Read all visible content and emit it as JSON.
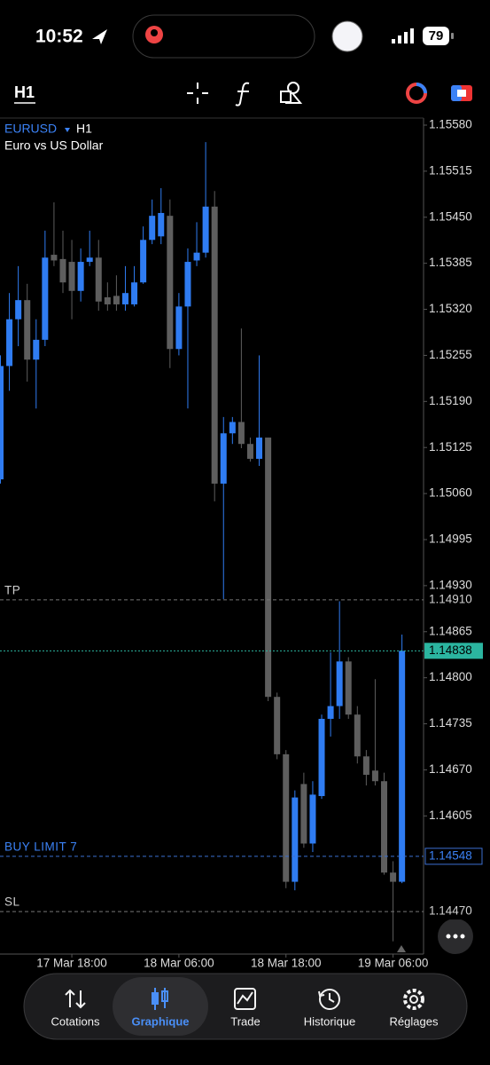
{
  "status_bar": {
    "time": "10:52",
    "battery": "79"
  },
  "toolbar": {
    "timeframe": "H1"
  },
  "chart_data": {
    "type": "candlestick",
    "symbol": "EURUSD",
    "timeframe": "H1",
    "subtitle": "Euro vs US Dollar",
    "categories": [
      null,
      null,
      null,
      null,
      null,
      null,
      null,
      null,
      "17 Mar 18:00",
      null,
      null,
      null,
      null,
      null,
      null,
      null,
      null,
      null,
      null,
      null,
      "18 Mar 06:00",
      null,
      null,
      null,
      null,
      null,
      null,
      null,
      null,
      null,
      null,
      null,
      "18 Mar 18:00",
      null,
      null,
      null,
      null,
      null,
      null,
      null,
      null,
      null,
      null,
      null,
      "19 Mar 06:00",
      null
    ],
    "series": [
      {
        "up_color": "#2f7cf2",
        "down_color": "#5e5e5e",
        "open": [
          1.1508,
          1.1524,
          1.15306,
          1.15333,
          1.15249,
          1.15277,
          1.15397,
          1.15391,
          1.15387,
          1.15346,
          1.15387,
          1.15393,
          1.15337,
          1.15339,
          1.15327,
          1.15327,
          1.15358,
          1.15418,
          1.15423,
          1.15452,
          1.15264,
          1.15324,
          1.15389,
          1.154,
          1.15465,
          1.15074,
          1.15145,
          1.15161,
          1.1513,
          1.15109,
          1.15139,
          1.14773,
          1.14692,
          1.14512,
          1.1465,
          1.14566,
          1.14633,
          1.14742,
          1.1476,
          1.14823,
          1.14748,
          1.14689,
          1.14669,
          1.14654,
          1.14525,
          1.14512
        ],
        "high": [
          1.15255,
          1.15343,
          1.15381,
          1.15356,
          1.15306,
          1.15431,
          1.15471,
          1.15431,
          1.15418,
          1.15406,
          1.15431,
          1.15418,
          1.15358,
          1.15368,
          1.15381,
          1.15381,
          1.15437,
          1.15475,
          1.15491,
          1.15475,
          1.15343,
          1.15406,
          1.15443,
          1.15556,
          1.15487,
          1.15168,
          1.15168,
          1.15293,
          1.15139,
          1.15255,
          1.15139,
          1.14779,
          1.14698,
          1.14641,
          1.14666,
          1.14654,
          1.14748,
          1.14836,
          1.14908,
          1.14829,
          1.1476,
          1.14698,
          1.14798,
          1.14666,
          1.14541,
          1.14861
        ],
        "low": [
          1.15074,
          1.15205,
          1.15268,
          1.15218,
          1.1518,
          1.15268,
          1.15381,
          1.15343,
          1.15306,
          1.15331,
          1.15381,
          1.15318,
          1.15318,
          1.15318,
          1.15318,
          1.15324,
          1.15356,
          1.15412,
          1.15412,
          1.15237,
          1.15255,
          1.1518,
          1.15381,
          1.15393,
          1.15049,
          1.14911,
          1.1513,
          1.15124,
          1.15105,
          1.15099,
          1.14767,
          1.14685,
          1.14503,
          1.145,
          1.1456,
          1.14554,
          1.14629,
          1.14717,
          1.14742,
          1.14742,
          1.14679,
          1.14648,
          1.14648,
          1.14522,
          1.14428,
          1.1451
        ],
        "close": [
          1.1524,
          1.15306,
          1.15333,
          1.15249,
          1.15277,
          1.15393,
          1.15389,
          1.15358,
          1.15346,
          1.15387,
          1.15393,
          1.15331,
          1.15327,
          1.15327,
          1.15343,
          1.15358,
          1.15418,
          1.15452,
          1.15456,
          1.15264,
          1.15324,
          1.15387,
          1.154,
          1.15465,
          1.15074,
          1.15145,
          1.15161,
          1.1513,
          1.15109,
          1.15139,
          1.14773,
          1.14692,
          1.14512,
          1.14631,
          1.14566,
          1.14635,
          1.14742,
          1.1476,
          1.14823,
          1.14748,
          1.14689,
          1.14663,
          1.14654,
          1.14525,
          1.14512,
          1.14838
        ]
      }
    ],
    "ylim": [
      1.1441,
      1.1559
    ],
    "yticks": [
      {
        "value": 1.1558,
        "label": "1.15580"
      },
      1.15515,
      {
        "value": 1.1545,
        "label": "1.15450"
      },
      1.15385,
      {
        "value": 1.1532,
        "label": "1.15320"
      },
      1.15255,
      {
        "value": 1.1519,
        "label": "1.15190"
      },
      1.15125,
      {
        "value": 1.1506,
        "label": "1.15060"
      },
      1.14995,
      {
        "value": 1.1493,
        "label": "1.14930"
      },
      1.14865,
      {
        "value": 1.148,
        "label": "1.14800"
      },
      1.14735,
      {
        "value": 1.1467,
        "label": "1.14670"
      },
      1.14605
    ],
    "levels": [
      {
        "name": "TP",
        "value": 1.1491,
        "label": "1.14910",
        "style": "order"
      },
      {
        "value": 1.14838,
        "style": "price"
      },
      {
        "name": "BUY LIMIT 7",
        "value": 1.14548,
        "style": "pending"
      },
      {
        "name": "SL",
        "value": 1.1447,
        "label": "1.14470",
        "style": "order"
      }
    ]
  },
  "nav": {
    "items": [
      "Cotations",
      "Graphique",
      "Trade",
      "Historique",
      "Réglages"
    ],
    "active": 1
  }
}
